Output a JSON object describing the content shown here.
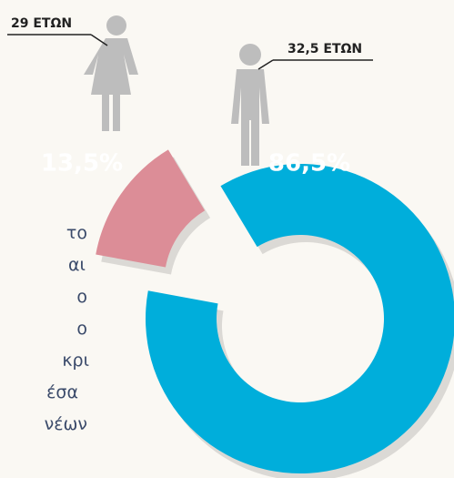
{
  "chart_data": {
    "type": "pie",
    "values": [
      86.5,
      13.5
    ],
    "value_labels": [
      "86,5%",
      "13,5%"
    ],
    "colors": [
      "#00aedb",
      "#dc8d97"
    ],
    "annotations": [
      "32,5 ΕΤΩΝ",
      "29 ΕΤΩΝ"
    ],
    "side_text": [
      "το",
      "αι",
      "ο",
      "ο",
      "κρι",
      "έσα",
      "νέων"
    ]
  }
}
